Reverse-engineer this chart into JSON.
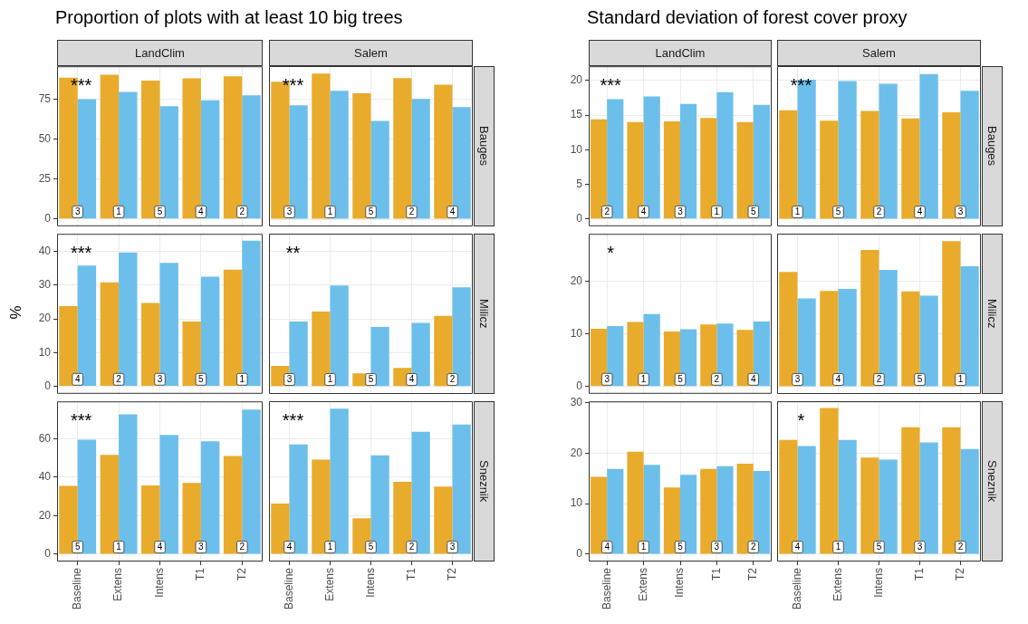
{
  "chart_data": [
    {
      "type": "bar",
      "title": "Proportion of plots with at least 10 big trees",
      "subtitle": "LandClim",
      "categories": [
        "Baseline",
        "Extens",
        "Intens",
        "T1",
        "T2"
      ],
      "series": [
        {
          "color": "#e9ab2c",
          "values": [
            88.4,
            90.3,
            86.5,
            88,
            89.2
          ]
        },
        {
          "color": "#6cbfeb",
          "values": [
            75,
            79.5,
            70.6,
            74.2,
            77.4
          ]
        }
      ],
      "ylim": [
        -4.5,
        95.5
      ],
      "yticks": [
        0,
        25,
        50,
        75
      ],
      "grid": true,
      "tick_labels": "y",
      "annotations": [
        "***",
        {
          "text": "3",
          "x": "Baseline"
        },
        {
          "text": "1",
          "x": "Extens"
        },
        {
          "text": "5",
          "x": "Intens"
        },
        {
          "text": "4",
          "x": "T1"
        },
        {
          "text": "2",
          "x": "T2"
        }
      ]
    },
    {
      "type": "bar",
      "subtitle": "Salem",
      "y2label": "Bauges",
      "categories": [
        "Baseline",
        "Extens",
        "Intens",
        "T1",
        "T2"
      ],
      "series": [
        {
          "color": "#e9ab2c",
          "values": [
            85.8,
            90.9,
            78.6,
            88,
            83.9
          ]
        },
        {
          "color": "#6cbfeb",
          "values": [
            71,
            80.1,
            61.3,
            75,
            70
          ]
        }
      ],
      "ylim": [
        -4.5,
        95.5
      ],
      "yticks": [
        0,
        25,
        50,
        75
      ],
      "grid": true,
      "tick_labels": false,
      "annotations": [
        "***",
        {
          "text": "3",
          "x": "Baseline"
        },
        {
          "text": "1",
          "x": "Extens"
        },
        {
          "text": "5",
          "x": "Intens"
        },
        {
          "text": "2",
          "x": "T1"
        },
        {
          "text": "4",
          "x": "T2"
        }
      ]
    },
    {
      "type": "bar",
      "ylabel": "%",
      "categories": [
        "Baseline",
        "Extens",
        "Intens",
        "T1",
        "T2"
      ],
      "series": [
        {
          "color": "#e9ab2c",
          "values": [
            23.8,
            30.8,
            24.7,
            19.2,
            34.6
          ]
        },
        {
          "color": "#6cbfeb",
          "values": [
            35.8,
            39.7,
            36.6,
            32.5,
            43.2
          ]
        }
      ],
      "ylim": [
        -2.2,
        45.2
      ],
      "yticks": [
        0,
        10,
        20,
        30,
        40
      ],
      "grid": true,
      "tick_labels": "y",
      "annotations": [
        "***",
        {
          "text": "4",
          "x": "Baseline"
        },
        {
          "text": "2",
          "x": "Extens"
        },
        {
          "text": "3",
          "x": "Intens"
        },
        {
          "text": "5",
          "x": "T1"
        },
        {
          "text": "1",
          "x": "T2"
        }
      ]
    },
    {
      "type": "bar",
      "y2label": "Milicz",
      "categories": [
        "Baseline",
        "Extens",
        "Intens",
        "T1",
        "T2"
      ],
      "series": [
        {
          "color": "#e9ab2c",
          "values": [
            6.1,
            22.2,
            3.9,
            5.5,
            20.9
          ]
        },
        {
          "color": "#6cbfeb",
          "values": [
            19.2,
            29.9,
            17.6,
            18.8,
            29.3
          ]
        }
      ],
      "ylim": [
        -2.2,
        45.2
      ],
      "yticks": [
        0,
        10,
        20,
        30,
        40
      ],
      "grid": true,
      "tick_labels": false,
      "annotations": [
        "**",
        {
          "text": "3",
          "x": "Baseline"
        },
        {
          "text": "1",
          "x": "Extens"
        },
        {
          "text": "5",
          "x": "Intens"
        },
        {
          "text": "4",
          "x": "T1"
        },
        {
          "text": "2",
          "x": "T2"
        }
      ]
    },
    {
      "type": "bar",
      "categories": [
        "Baseline",
        "Extens",
        "Intens",
        "T1",
        "T2"
      ],
      "series": [
        {
          "color": "#e9ab2c",
          "values": [
            35.4,
            51.5,
            35.7,
            37,
            51
          ]
        },
        {
          "color": "#6cbfeb",
          "values": [
            59.4,
            72.6,
            61.9,
            58.6,
            75
          ]
        }
      ],
      "ylim": [
        -3.8,
        79.3
      ],
      "yticks": [
        0,
        20,
        40,
        60
      ],
      "grid": true,
      "annotations": [
        "***",
        {
          "text": "5",
          "x": "Baseline"
        },
        {
          "text": "1",
          "x": "Extens"
        },
        {
          "text": "4",
          "x": "Intens"
        },
        {
          "text": "3",
          "x": "T1"
        },
        {
          "text": "2",
          "x": "T2"
        }
      ]
    },
    {
      "type": "bar",
      "y2label": "Sneznik",
      "categories": [
        "Baseline",
        "Extens",
        "Intens",
        "T1",
        "T2"
      ],
      "series": [
        {
          "color": "#e9ab2c",
          "values": [
            26.3,
            49,
            18.6,
            37.5,
            35
          ]
        },
        {
          "color": "#6cbfeb",
          "values": [
            56.9,
            75.4,
            51.2,
            63.5,
            67.2
          ]
        }
      ],
      "ylim": [
        -3.8,
        79.3
      ],
      "yticks": [
        0,
        20,
        40,
        60
      ],
      "grid": true,
      "tick_labels": "x",
      "annotations": [
        "***",
        {
          "text": "4",
          "x": "Baseline"
        },
        {
          "text": "1",
          "x": "Extens"
        },
        {
          "text": "5",
          "x": "Intens"
        },
        {
          "text": "2",
          "x": "T1"
        },
        {
          "text": "3",
          "x": "T2"
        }
      ]
    },
    {
      "type": "bar",
      "title": "Standard deviation of forest cover proxy",
      "subtitle": "LandClim",
      "categories": [
        "Baseline",
        "Extens",
        "Intens",
        "T1",
        "T2"
      ],
      "series": [
        {
          "color": "#e9ab2c",
          "values": [
            14.4,
            14,
            14.1,
            14.6,
            14
          ]
        },
        {
          "color": "#6cbfeb",
          "values": [
            17.3,
            17.7,
            16.6,
            18.3,
            16.5
          ]
        }
      ],
      "ylim": [
        -1.05,
        22.05
      ],
      "yticks": [
        0,
        5,
        10,
        15,
        20
      ],
      "grid": true,
      "tick_labels": "y",
      "annotations": [
        "***",
        {
          "text": "2",
          "x": "Baseline"
        },
        {
          "text": "4",
          "x": "Extens"
        },
        {
          "text": "3",
          "x": "Intens"
        },
        {
          "text": "1",
          "x": "T1"
        },
        {
          "text": "5",
          "x": "T2"
        }
      ]
    },
    {
      "type": "bar",
      "subtitle": "Salem",
      "y2label": "Bauges",
      "categories": [
        "Baseline",
        "Extens",
        "Intens",
        "T1",
        "T2"
      ],
      "series": [
        {
          "color": "#e9ab2c",
          "values": [
            15.7,
            14.2,
            15.6,
            14.5,
            15.4
          ]
        },
        {
          "color": "#6cbfeb",
          "values": [
            20.1,
            19.9,
            19.5,
            20.9,
            18.5
          ]
        }
      ],
      "ylim": [
        -1.05,
        22.05
      ],
      "yticks": [
        0,
        5,
        10,
        15,
        20
      ],
      "grid": true,
      "tick_labels": false,
      "annotations": [
        "***",
        {
          "text": "1",
          "x": "Baseline"
        },
        {
          "text": "5",
          "x": "Extens"
        },
        {
          "text": "2",
          "x": "Intens"
        },
        {
          "text": "4",
          "x": "T1"
        },
        {
          "text": "3",
          "x": "T2"
        }
      ]
    },
    {
      "type": "bar",
      "categories": [
        "Baseline",
        "Extens",
        "Intens",
        "T1",
        "T2"
      ],
      "series": [
        {
          "color": "#e9ab2c",
          "values": [
            11,
            12.3,
            10.5,
            11.8,
            10.8
          ]
        },
        {
          "color": "#6cbfeb",
          "values": [
            11.5,
            13.8,
            10.9,
            12,
            12.4
          ]
        }
      ],
      "ylim": [
        -1.4,
        29.1
      ],
      "yticks": [
        0,
        10,
        20
      ],
      "grid": true,
      "tick_labels": "y",
      "annotations": [
        "*",
        {
          "text": "3",
          "x": "Baseline"
        },
        {
          "text": "1",
          "x": "Extens"
        },
        {
          "text": "5",
          "x": "Intens"
        },
        {
          "text": "2",
          "x": "T1"
        },
        {
          "text": "4",
          "x": "T2"
        }
      ]
    },
    {
      "type": "bar",
      "y2label": "Milicz",
      "categories": [
        "Baseline",
        "Extens",
        "Intens",
        "T1",
        "T2"
      ],
      "series": [
        {
          "color": "#e9ab2c",
          "values": [
            21.8,
            18.2,
            26,
            18.1,
            27.7
          ]
        },
        {
          "color": "#6cbfeb",
          "values": [
            16.8,
            18.6,
            22.2,
            17.3,
            22.9
          ]
        }
      ],
      "ylim": [
        -1.4,
        29.1
      ],
      "yticks": [
        0,
        10,
        20
      ],
      "grid": true,
      "tick_labels": false,
      "annotations": [
        {
          "text": "3",
          "x": "Baseline"
        },
        {
          "text": "4",
          "x": "Extens"
        },
        {
          "text": "2",
          "x": "Intens"
        },
        {
          "text": "5",
          "x": "T1"
        },
        {
          "text": "1",
          "x": "T2"
        }
      ]
    },
    {
      "type": "bar",
      "categories": [
        "Baseline",
        "Extens",
        "Intens",
        "T1",
        "T2"
      ],
      "series": [
        {
          "color": "#e9ab2c",
          "values": [
            15.3,
            20.3,
            13.2,
            16.9,
            17.9
          ]
        },
        {
          "color": "#6cbfeb",
          "values": [
            16.9,
            17.7,
            15.7,
            17.4,
            16.5
          ]
        }
      ],
      "ylim": [
        -1.45,
        30.25
      ],
      "yticks": [
        0,
        10,
        20,
        30
      ],
      "grid": true,
      "annotations": [
        {
          "text": "4",
          "x": "Baseline"
        },
        {
          "text": "1",
          "x": "Extens"
        },
        {
          "text": "5",
          "x": "Intens"
        },
        {
          "text": "3",
          "x": "T1"
        },
        {
          "text": "2",
          "x": "T2"
        }
      ]
    },
    {
      "type": "bar",
      "y2label": "Sneznik",
      "categories": [
        "Baseline",
        "Extens",
        "Intens",
        "T1",
        "T2"
      ],
      "series": [
        {
          "color": "#e9ab2c",
          "values": [
            22.6,
            28.9,
            19.1,
            25.1,
            25.1
          ]
        },
        {
          "color": "#6cbfeb",
          "values": [
            21.4,
            22.6,
            18.7,
            22.1,
            20.8
          ]
        }
      ],
      "ylim": [
        -1.45,
        30.25
      ],
      "yticks": [
        0,
        10,
        20,
        30
      ],
      "grid": true,
      "tick_labels": "x",
      "annotations": [
        "*",
        {
          "text": "4",
          "x": "Baseline"
        },
        {
          "text": "1",
          "x": "Extens"
        },
        {
          "text": "5",
          "x": "Intens"
        },
        {
          "text": "3",
          "x": "T1"
        },
        {
          "text": "2",
          "x": "T2"
        }
      ]
    }
  ]
}
